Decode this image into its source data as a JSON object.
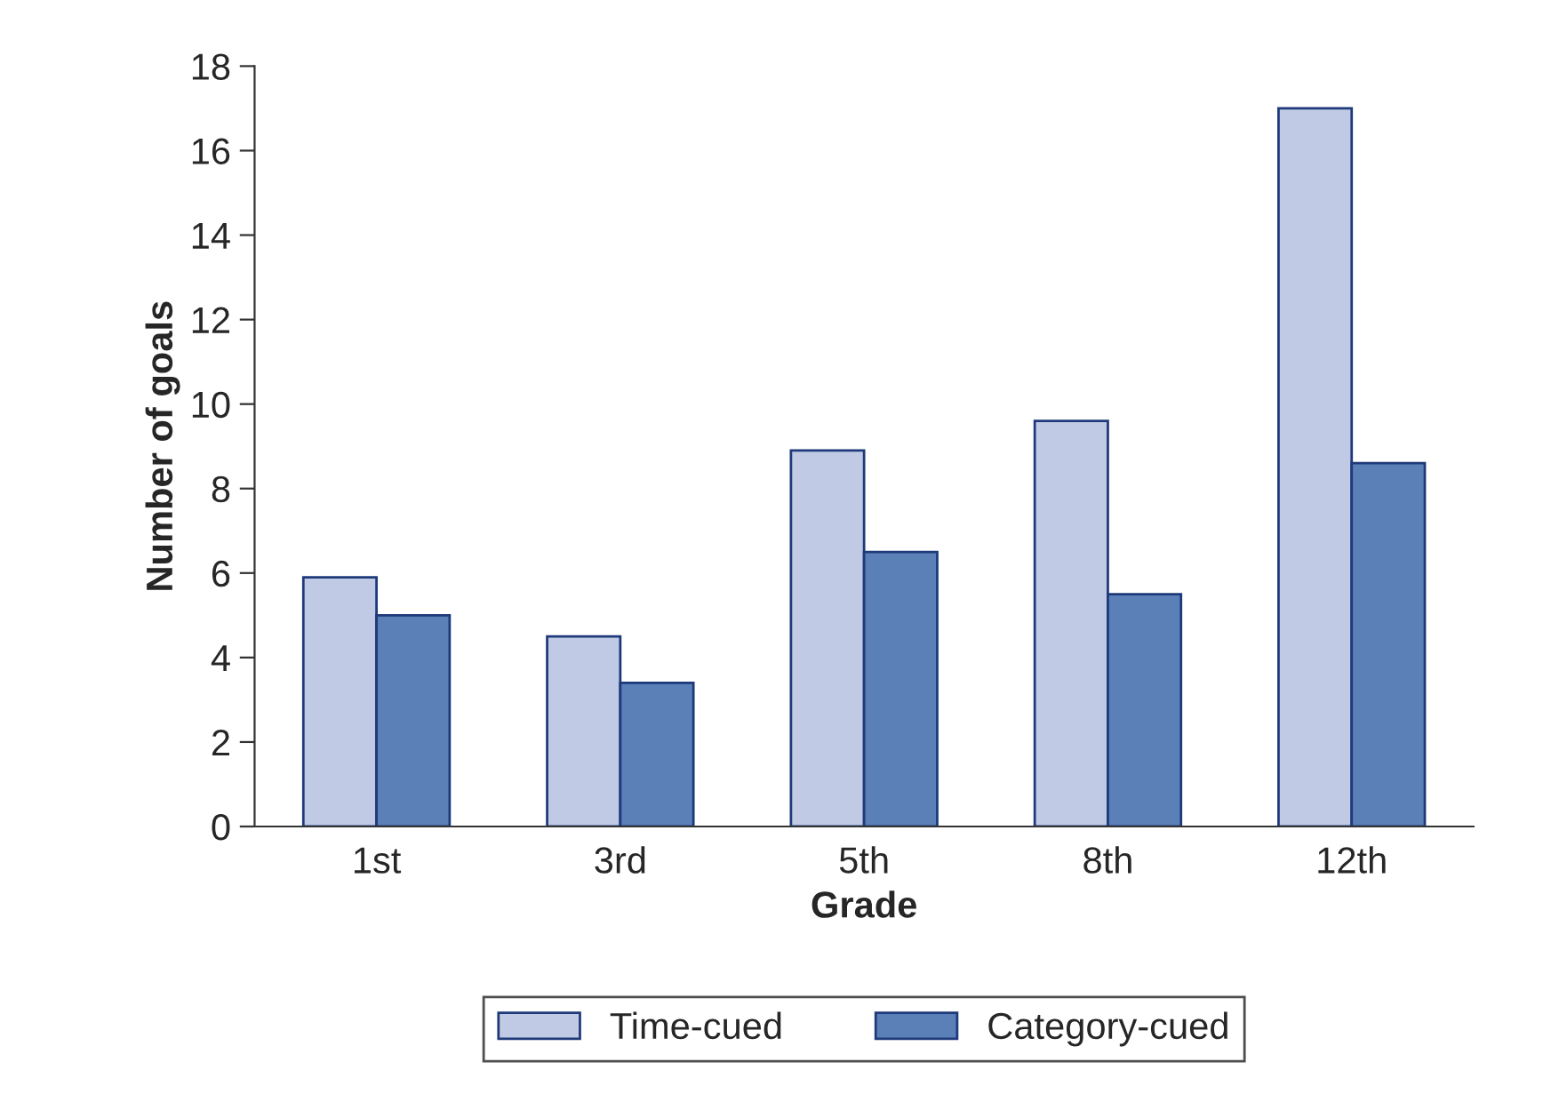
{
  "chart_data": {
    "type": "bar",
    "xlabel": "Grade",
    "ylabel": "Number of goals",
    "categories": [
      "1st",
      "3rd",
      "5th",
      "8th",
      "12th"
    ],
    "series": [
      {
        "name": "Time-cued",
        "color": "#c0cae4",
        "values": [
          5.9,
          4.5,
          8.9,
          9.6,
          17.0
        ]
      },
      {
        "name": "Category-cued",
        "color": "#5b80b8",
        "values": [
          5.0,
          3.4,
          6.5,
          5.5,
          8.6
        ]
      }
    ],
    "ylim": [
      0,
      18
    ],
    "yticks": [
      0,
      2,
      4,
      6,
      8,
      10,
      12,
      14,
      16,
      18
    ],
    "grid": false,
    "legend": "bottom"
  }
}
